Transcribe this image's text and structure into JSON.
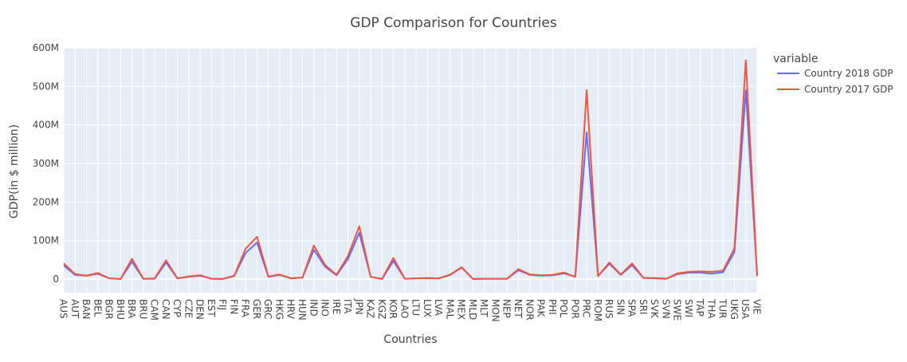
{
  "chart_data": {
    "type": "line",
    "title": "GDP Comparison for Countries",
    "xlabel": "Countries",
    "ylabel": "GDP(in $ million)",
    "ylim": [
      -35,
      600
    ],
    "y_ticks": [
      0,
      100,
      200,
      300,
      400,
      500,
      600
    ],
    "y_tick_labels": [
      "0",
      "100M",
      "200M",
      "300M",
      "400M",
      "500M",
      "600M"
    ],
    "grid": true,
    "legend_title": "variable",
    "legend_position": "right",
    "categories": [
      "AUS",
      "AUT",
      "BAN",
      "BEL",
      "BGR",
      "BHU",
      "BRA",
      "BRU",
      "CAM",
      "CAN",
      "CYP",
      "CZE",
      "DEN",
      "EST",
      "FIJ",
      "FIN",
      "FRA",
      "GER",
      "GRC",
      "HKG",
      "HRV",
      "HUN",
      "IND",
      "INO",
      "IRE",
      "ITA",
      "JPN",
      "KAZ",
      "KGZ",
      "KOR",
      "LAO",
      "LTU",
      "LUX",
      "LVA",
      "MAL",
      "MEX",
      "MLD",
      "MLT",
      "MON",
      "NEP",
      "NET",
      "NOR",
      "PAK",
      "PHI",
      "POL",
      "POR",
      "PRC",
      "ROM",
      "RUS",
      "SIN",
      "SPA",
      "SRI",
      "SVK",
      "SVN",
      "SWE",
      "SWI",
      "TAP",
      "THA",
      "TUR",
      "UKG",
      "USA",
      "VIE"
    ],
    "series": [
      {
        "name": "Country 2018 GDP",
        "color": "#636efa",
        "values": [
          35,
          11,
          9,
          14,
          2,
          0.5,
          45,
          1,
          1,
          43,
          2,
          6,
          9,
          1,
          0.5,
          8,
          68,
          95,
          6,
          11,
          2,
          4,
          76,
          32,
          10,
          52,
          120,
          6,
          0.5,
          47,
          1,
          2,
          2,
          2,
          11,
          30,
          0.5,
          1,
          1,
          1,
          23,
          11,
          9,
          10,
          15,
          6,
          381,
          8,
          40,
          11,
          36,
          3,
          2,
          1,
          13,
          17,
          17,
          14,
          18,
          70,
          490,
          8
        ]
      },
      {
        "name": "Country 2017 GDP",
        "color": "#ef553b",
        "values": [
          41,
          13,
          9,
          16,
          2,
          0.5,
          53,
          1,
          2,
          49,
          2,
          7,
          10,
          1,
          0.5,
          9,
          79,
          110,
          7,
          12,
          2,
          4,
          87,
          36,
          11,
          60,
          137,
          6,
          0.5,
          55,
          1,
          2,
          3,
          2,
          12,
          31,
          0.5,
          1,
          1,
          1,
          26,
          12,
          10,
          11,
          17,
          6,
          491,
          8,
          43,
          12,
          41,
          3,
          3,
          1,
          15,
          19,
          20,
          19,
          22,
          80,
          568,
          8
        ]
      }
    ]
  }
}
